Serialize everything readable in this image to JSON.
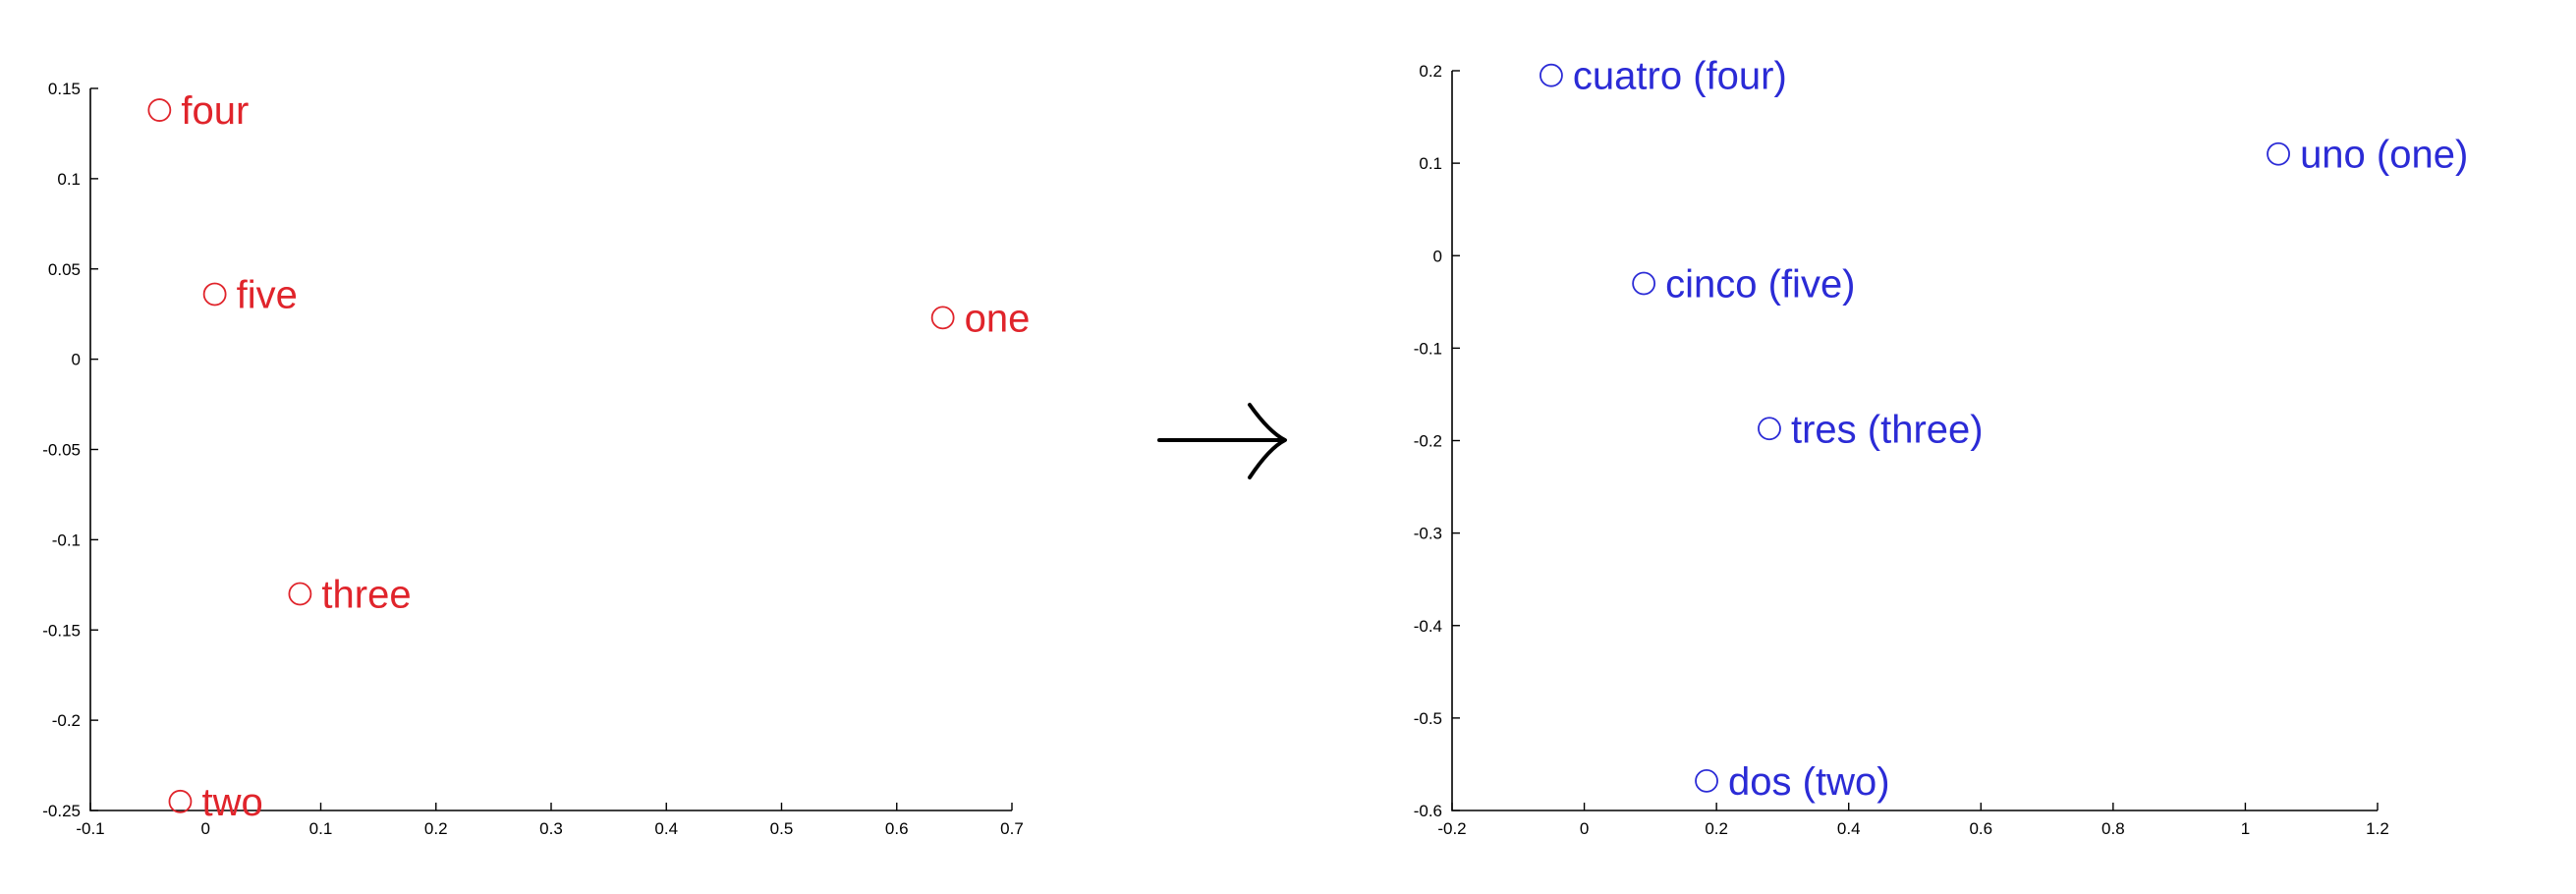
{
  "colors": {
    "left_series": "#e0242b",
    "right_series": "#2b2bd6",
    "axis": "#000000"
  },
  "arrow": {
    "icon": "right-arrow-icon"
  },
  "chart_data": [
    {
      "type": "scatter",
      "title": "",
      "xlabel": "",
      "ylabel": "",
      "xlim": [
        -0.1,
        0.7
      ],
      "ylim": [
        -0.25,
        0.15
      ],
      "xticks": [
        "-0.1",
        "0",
        "0.1",
        "0.2",
        "0.3",
        "0.4",
        "0.5",
        "0.6",
        "0.7"
      ],
      "yticks": [
        "-0.25",
        "-0.2",
        "-0.15",
        "-0.1",
        "-0.05",
        "0",
        "0.05",
        "0.1",
        "0.15"
      ],
      "grid": false,
      "points": [
        {
          "label": "four",
          "x": -0.04,
          "y": 0.138
        },
        {
          "label": "five",
          "x": 0.008,
          "y": 0.036
        },
        {
          "label": "one",
          "x": 0.64,
          "y": 0.023
        },
        {
          "label": "three",
          "x": 0.082,
          "y": -0.13
        },
        {
          "label": "two",
          "x": -0.022,
          "y": -0.245
        }
      ]
    },
    {
      "type": "scatter",
      "title": "",
      "xlabel": "",
      "ylabel": "",
      "xlim": [
        -0.2,
        1.2
      ],
      "ylim": [
        -0.6,
        0.2
      ],
      "xticks": [
        "-0.2",
        "0",
        "0.2",
        "0.4",
        "0.6",
        "0.8",
        "1",
        "1.2"
      ],
      "yticks": [
        "-0.6",
        "-0.5",
        "-0.4",
        "-0.3",
        "-0.2",
        "-0.1",
        "0",
        "0.1",
        "0.2"
      ],
      "grid": false,
      "points": [
        {
          "label": "cuatro (four)",
          "x": -0.05,
          "y": 0.195
        },
        {
          "label": "uno (one)",
          "x": 1.05,
          "y": 0.11
        },
        {
          "label": "cinco (five)",
          "x": 0.09,
          "y": -0.03
        },
        {
          "label": "tres (three)",
          "x": 0.28,
          "y": -0.187
        },
        {
          "label": "dos (two)",
          "x": 0.185,
          "y": -0.568
        }
      ]
    }
  ]
}
